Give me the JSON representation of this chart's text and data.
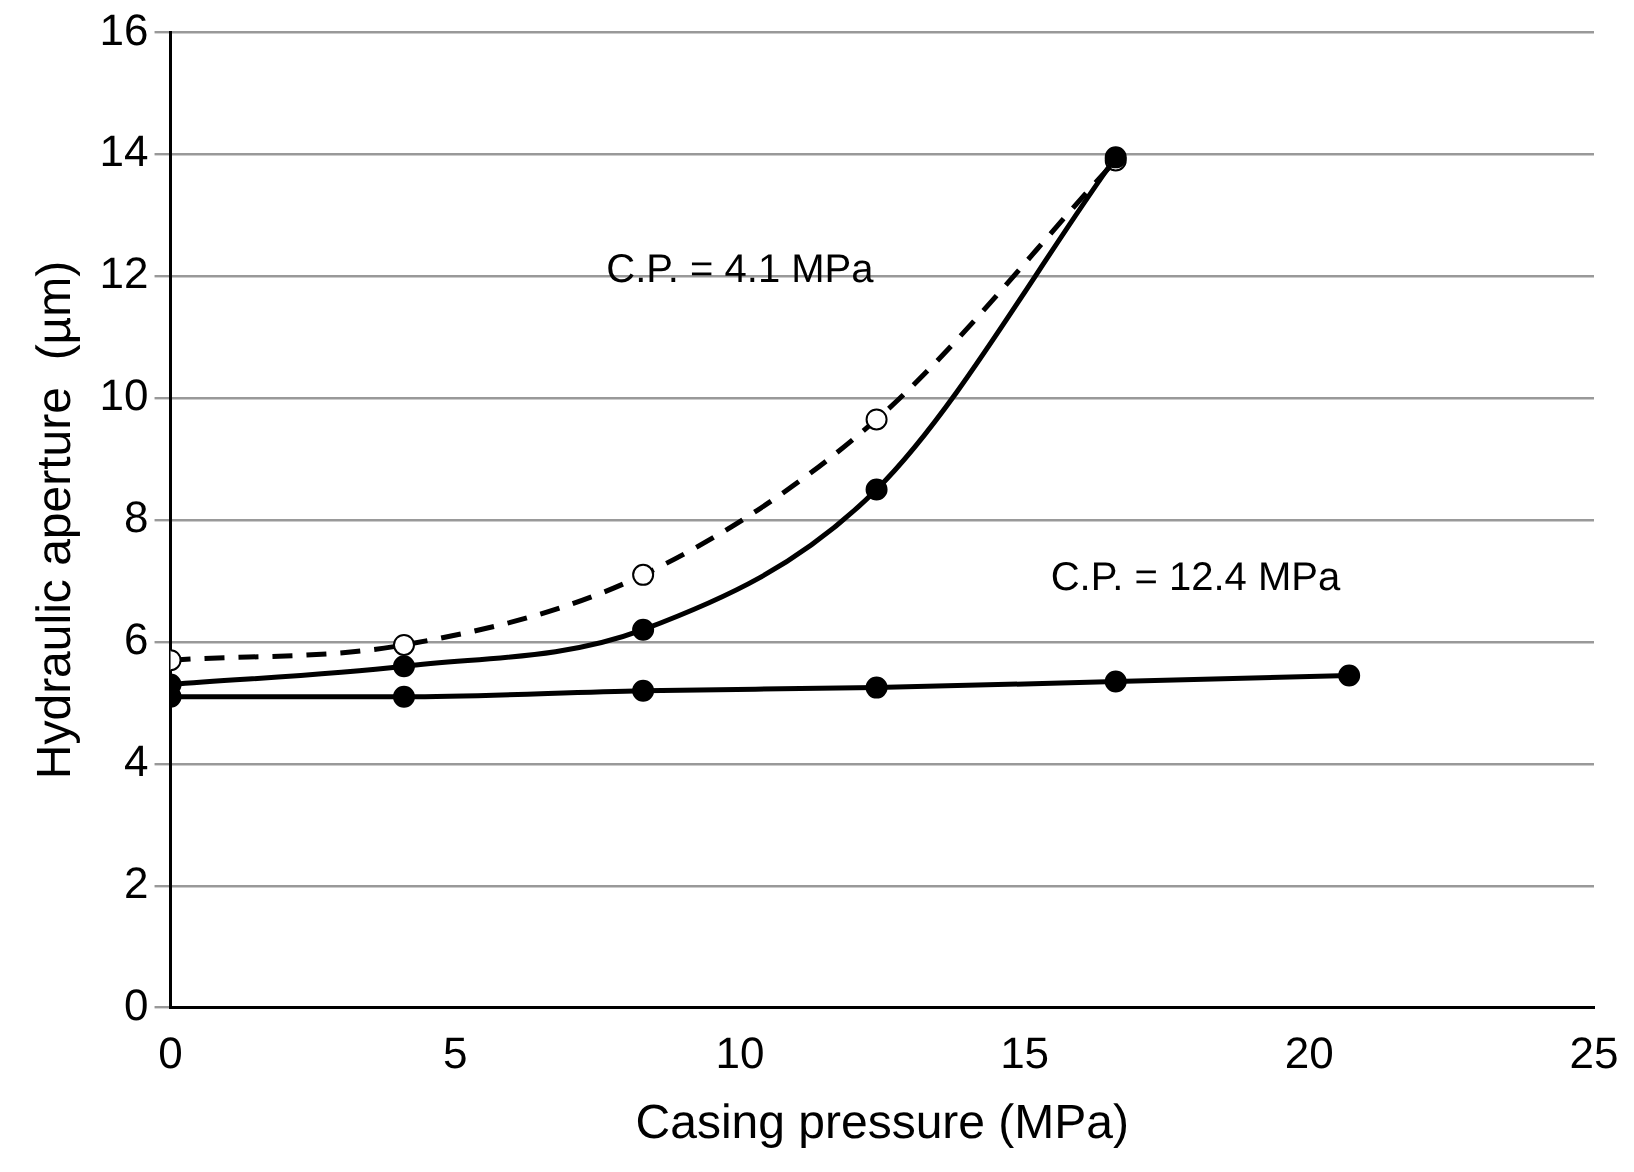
{
  "chart_data": {
    "type": "line",
    "xlabel": "Casing pressure (MPa)",
    "ylabel": "Hydraulic aperture  (µm)",
    "x": [
      0,
      4.1,
      8.3,
      12.4,
      16.6,
      20.7
    ],
    "series": [
      {
        "color": "#000000",
        "line_style": "dashed",
        "marker": "circle",
        "values": [
          5.7,
          5.95,
          7.1,
          9.65,
          13.9,
          null
        ]
      },
      {
        "color": "#000000",
        "line_style": "solid",
        "marker": "circle",
        "values": [
          5.3,
          5.6,
          6.2,
          8.5,
          13.95,
          null
        ]
      },
      {
        "color": "#000000",
        "line_style": "solid",
        "marker": "circle",
        "values": [
          5.1,
          5.1,
          5.2,
          5.25,
          5.35,
          5.45
        ]
      }
    ],
    "xlim": [
      0,
      25
    ],
    "xticks": [
      0,
      5,
      10,
      15,
      20,
      25
    ],
    "ylim": [
      0,
      16
    ],
    "yticks": [
      0,
      2,
      4,
      6,
      8,
      10,
      12,
      14,
      16
    ],
    "grid": "y",
    "legend": false,
    "annotations": [
      "C.P. = 4.1 MPa",
      "C.P. = 12.4 MPa"
    ]
  }
}
